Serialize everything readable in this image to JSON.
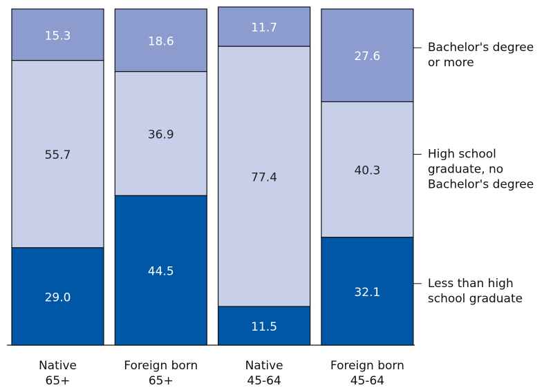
{
  "chart_data": {
    "type": "stacked_bar",
    "categories": [
      "Native 65+",
      "Foreign born 65+",
      "Native 45-64",
      "Foreign born 45-64"
    ],
    "series": [
      {
        "name": "Less than high school graduate",
        "color": "#0057a6",
        "values": [
          29.0,
          44.5,
          11.5,
          32.1
        ],
        "value_labels": [
          "29.0",
          "44.5",
          "11.5",
          "32.1"
        ]
      },
      {
        "name": "High school graduate, no Bachelor's degree",
        "color": "#c8cfe9",
        "values": [
          55.7,
          36.9,
          77.4,
          40.3
        ]
      },
      {
        "name": "Bachelor's degree or more",
        "color": "#8c9ccf",
        "values": [
          15.3,
          18.6,
          11.7,
          27.6
        ]
      }
    ],
    "ylim": [
      0,
      100
    ]
  }
}
